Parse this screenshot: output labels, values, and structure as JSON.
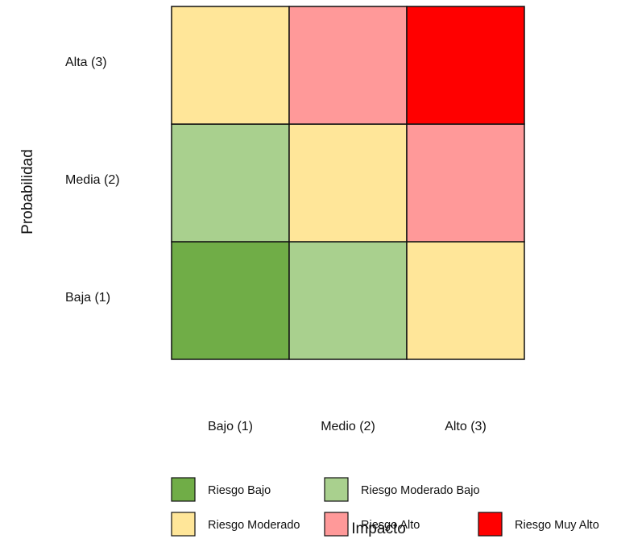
{
  "chart_data": {
    "type": "heatmap",
    "title": "",
    "xlabel": "Impacto",
    "ylabel": "Probabilidad",
    "x_categories": [
      "Bajo (1)",
      "Medio (2)",
      "Alto (3)"
    ],
    "y_categories": [
      "Baja (1)",
      "Media (2)",
      "Alta (3)"
    ],
    "risk_levels": [
      {
        "key": "bajo",
        "name": "Riesgo Bajo",
        "color": "#70AD47"
      },
      {
        "key": "moderado_bajo",
        "name": "Riesgo Moderado Bajo",
        "color": "#A9D08E"
      },
      {
        "key": "moderado",
        "name": "Riesgo Moderado",
        "color": "#FFE699"
      },
      {
        "key": "alto",
        "name": "Riesgo Alto",
        "color": "#FF9999"
      },
      {
        "key": "muy_alto",
        "name": "Riesgo Muy Alto",
        "color": "#FF0000"
      }
    ],
    "cells": [
      {
        "x": "Bajo (1)",
        "y": "Baja (1)",
        "level": "bajo"
      },
      {
        "x": "Medio (2)",
        "y": "Baja (1)",
        "level": "moderado_bajo"
      },
      {
        "x": "Alto (3)",
        "y": "Baja (1)",
        "level": "moderado"
      },
      {
        "x": "Bajo (1)",
        "y": "Media (2)",
        "level": "moderado_bajo"
      },
      {
        "x": "Medio (2)",
        "y": "Media (2)",
        "level": "moderado"
      },
      {
        "x": "Alto (3)",
        "y": "Media (2)",
        "level": "alto"
      },
      {
        "x": "Bajo (1)",
        "y": "Alta (3)",
        "level": "moderado"
      },
      {
        "x": "Medio (2)",
        "y": "Alta (3)",
        "level": "alto"
      },
      {
        "x": "Alto (3)",
        "y": "Alta (3)",
        "level": "muy_alto"
      }
    ],
    "grid": true,
    "legend_position": "bottom"
  }
}
